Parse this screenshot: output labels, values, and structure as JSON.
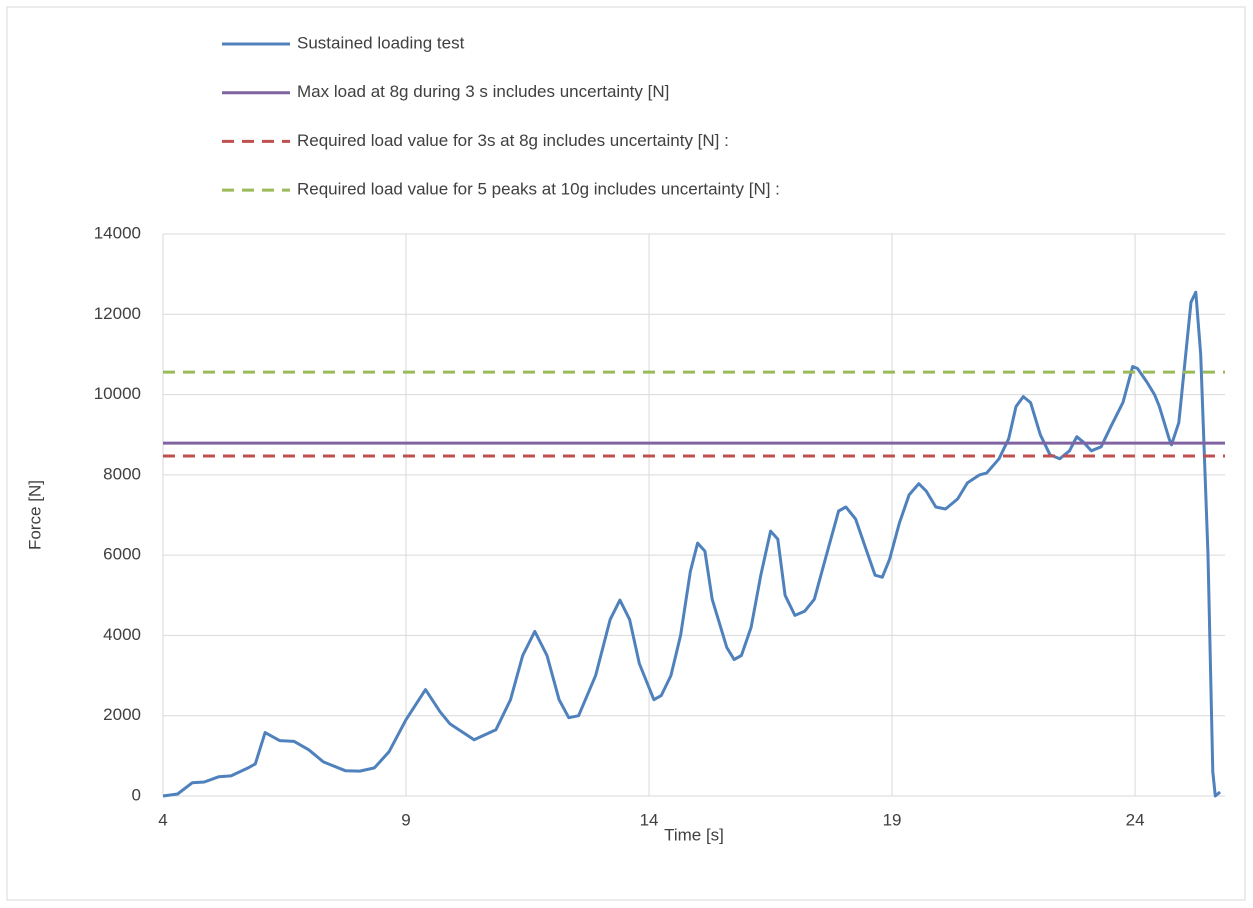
{
  "chart_data": {
    "type": "line",
    "xlabel": "Time [s]",
    "ylabel": "Force [N]",
    "xlim": [
      4,
      25.85
    ],
    "xticks": [
      4,
      9,
      14,
      19,
      24
    ],
    "ylim": [
      0,
      14000
    ],
    "yticks": [
      0,
      2000,
      4000,
      6000,
      8000,
      10000,
      12000,
      14000
    ],
    "grid": true,
    "legend": "top",
    "series": [
      {
        "name": "Sustained loading test",
        "color": "#4f81bd",
        "dash": false,
        "x": [
          4,
          4.3,
          4.6,
          4.85,
          5.15,
          5.4,
          5.75,
          5.9,
          6.1,
          6.4,
          6.7,
          7.0,
          7.3,
          7.75,
          8.05,
          8.35,
          8.65,
          9.0,
          9.4,
          9.7,
          9.9,
          10.4,
          10.85,
          11.15,
          11.4,
          11.65,
          11.9,
          12.15,
          12.35,
          12.55,
          12.9,
          13.2,
          13.4,
          13.6,
          13.8,
          14.1,
          14.25,
          14.45,
          14.65,
          14.85,
          15.0,
          15.15,
          15.3,
          15.6,
          15.75,
          15.9,
          16.1,
          16.3,
          16.5,
          16.65,
          16.8,
          17.0,
          17.2,
          17.4,
          17.65,
          17.9,
          18.05,
          18.25,
          18.45,
          18.65,
          18.8,
          18.95,
          19.15,
          19.35,
          19.55,
          19.7,
          19.9,
          20.1,
          20.35,
          20.55,
          20.8,
          20.95,
          21.2,
          21.4,
          21.55,
          21.7,
          21.85,
          22.05,
          22.25,
          22.45,
          22.65,
          22.8,
          22.95,
          23.1,
          23.3,
          23.5,
          23.75,
          23.95,
          24.05,
          24.25,
          24.4,
          24.5,
          24.7,
          24.75,
          24.9,
          25.0,
          25.15,
          25.25,
          25.35,
          25.5,
          25.6,
          25.65,
          25.75
        ],
        "values": [
          0,
          50,
          330,
          350,
          480,
          500,
          700,
          800,
          1580,
          1380,
          1360,
          1150,
          850,
          630,
          620,
          700,
          1100,
          1900,
          2650,
          2100,
          1800,
          1400,
          1650,
          2400,
          3500,
          4100,
          3500,
          2400,
          1950,
          2000,
          3000,
          4400,
          4880,
          4400,
          3300,
          2400,
          2500,
          3000,
          4000,
          5600,
          6300,
          6100,
          4900,
          3700,
          3400,
          3500,
          4200,
          5500,
          6600,
          6400,
          5000,
          4500,
          4600,
          4900,
          6000,
          7100,
          7200,
          6900,
          6200,
          5500,
          5450,
          5900,
          6800,
          7500,
          7780,
          7600,
          7200,
          7150,
          7400,
          7800,
          8000,
          8050,
          8400,
          8900,
          9700,
          9950,
          9800,
          9000,
          8500,
          8400,
          8600,
          8950,
          8800,
          8600,
          8700,
          9200,
          9800,
          10700,
          10650,
          10300,
          10000,
          9700,
          8900,
          8750,
          9300,
          10500,
          12300,
          12550,
          11000,
          6000,
          600,
          0,
          100
        ]
      },
      {
        "name": "Max load at 8g during 3 s includes uncertainty [N]",
        "color": "#8064a2",
        "dash": false,
        "x": [
          4,
          25.85
        ],
        "values": [
          8790,
          8790
        ]
      },
      {
        "name": "Required load value for 3s at 8g includes uncertainty [N] :",
        "color": "#c0504d",
        "dash": true,
        "x": [
          4,
          25.85
        ],
        "values": [
          8470,
          8470
        ]
      },
      {
        "name": "Required load value for 5 peaks at 10g includes uncertainty [N] :",
        "color": "#9bbb59",
        "dash": true,
        "x": [
          4,
          25.85
        ],
        "values": [
          10560,
          10560
        ]
      }
    ]
  }
}
